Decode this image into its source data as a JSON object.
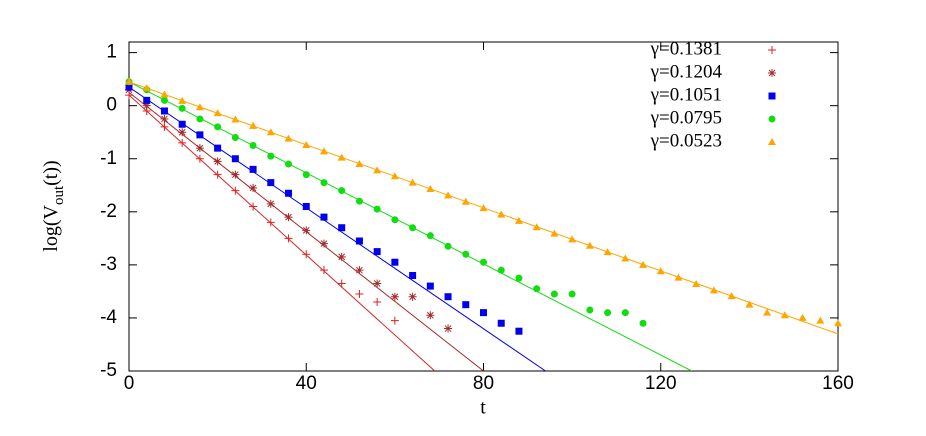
{
  "chart_data": {
    "type": "scatter",
    "xlabel": "t",
    "ylabel": [
      "log(V",
      "out",
      "(t))"
    ],
    "xlim": [
      0,
      160
    ],
    "ylim": [
      -5,
      1.2
    ],
    "xticks": [
      0,
      40,
      80,
      120,
      160
    ],
    "yticks": [
      1,
      0,
      -1,
      -2,
      -3,
      -4,
      -5
    ],
    "legend": "top-right",
    "series": [
      {
        "name": "γ=0.1381",
        "color": "#dd2222",
        "marker": "plus",
        "x": [
          0,
          4,
          8,
          12,
          16,
          20,
          24,
          28,
          32,
          36,
          40,
          44,
          48,
          52,
          56,
          60
        ],
        "values": [
          0.2,
          -0.1,
          -0.4,
          -0.7,
          -1.0,
          -1.3,
          -1.6,
          -1.9,
          -2.2,
          -2.5,
          -2.8,
          -3.1,
          -3.35,
          -3.55,
          -3.7,
          -4.05
        ],
        "fit": {
          "x": [
            0,
            69
          ],
          "values": [
            0.2,
            -5
          ]
        }
      },
      {
        "name": "γ=0.1204",
        "color": "#a52a2a",
        "marker": "star",
        "x": [
          0,
          4,
          8,
          12,
          16,
          20,
          24,
          28,
          32,
          36,
          40,
          44,
          48,
          52,
          56,
          60,
          64,
          68,
          72
        ],
        "values": [
          0.3,
          0.0,
          -0.25,
          -0.5,
          -0.8,
          -1.05,
          -1.3,
          -1.55,
          -1.85,
          -2.1,
          -2.35,
          -2.6,
          -2.85,
          -3.1,
          -3.35,
          -3.6,
          -3.6,
          -3.95,
          -4.2
        ],
        "fit": {
          "x": [
            0,
            80
          ],
          "values": [
            0.25,
            -5
          ]
        }
      },
      {
        "name": "γ=0.1051",
        "color": "#0000ee",
        "marker": "square",
        "x": [
          0,
          4,
          8,
          12,
          16,
          20,
          24,
          28,
          32,
          36,
          40,
          44,
          48,
          52,
          56,
          60,
          64,
          68,
          72,
          76,
          80,
          84,
          88
        ],
        "values": [
          0.35,
          0.1,
          -0.1,
          -0.35,
          -0.55,
          -0.8,
          -1.0,
          -1.2,
          -1.45,
          -1.65,
          -1.9,
          -2.1,
          -2.3,
          -2.55,
          -2.75,
          -2.95,
          -3.2,
          -3.4,
          -3.6,
          -3.75,
          -3.9,
          -4.1,
          -4.25
        ],
        "fit": {
          "x": [
            0,
            94
          ],
          "values": [
            0.35,
            -5
          ]
        }
      },
      {
        "name": "γ=0.0795",
        "color": "#11dd11",
        "marker": "circle",
        "x": [
          0,
          4,
          8,
          12,
          16,
          20,
          24,
          28,
          32,
          36,
          40,
          44,
          48,
          52,
          56,
          60,
          64,
          68,
          72,
          76,
          80,
          84,
          88,
          92,
          96,
          100,
          104,
          108,
          112,
          116
        ],
        "values": [
          0.45,
          0.3,
          0.1,
          -0.05,
          -0.25,
          -0.4,
          -0.6,
          -0.75,
          -0.95,
          -1.1,
          -1.3,
          -1.45,
          -1.6,
          -1.8,
          -1.95,
          -2.15,
          -2.3,
          -2.45,
          -2.65,
          -2.8,
          -2.95,
          -3.1,
          -3.25,
          -3.45,
          -3.55,
          -3.55,
          -3.85,
          -3.9,
          -3.9,
          -4.1
        ],
        "fit": {
          "x": [
            0,
            127
          ],
          "values": [
            0.45,
            -5
          ]
        }
      },
      {
        "name": "γ=0.0523",
        "color": "#ffa500",
        "marker": "triangle",
        "x": [
          0,
          4,
          8,
          12,
          16,
          20,
          24,
          28,
          32,
          36,
          40,
          44,
          48,
          52,
          56,
          60,
          64,
          68,
          72,
          76,
          80,
          84,
          88,
          92,
          96,
          100,
          104,
          108,
          112,
          116,
          120,
          124,
          128,
          132,
          136,
          140,
          144,
          148,
          152,
          156,
          160
        ],
        "values": [
          0.45,
          0.33,
          0.21,
          0.09,
          -0.03,
          -0.14,
          -0.26,
          -0.38,
          -0.5,
          -0.62,
          -0.74,
          -0.86,
          -0.98,
          -1.1,
          -1.22,
          -1.33,
          -1.45,
          -1.57,
          -1.69,
          -1.81,
          -1.93,
          -2.05,
          -2.17,
          -2.29,
          -2.41,
          -2.52,
          -2.64,
          -2.76,
          -2.88,
          -3.0,
          -3.12,
          -3.24,
          -3.36,
          -3.48,
          -3.59,
          -3.75,
          -3.9,
          -3.95,
          -4.0,
          -4.05,
          -4.1
        ],
        "fit": {
          "x": [
            0,
            160
          ],
          "values": [
            0.45,
            -4.3
          ]
        }
      }
    ]
  }
}
